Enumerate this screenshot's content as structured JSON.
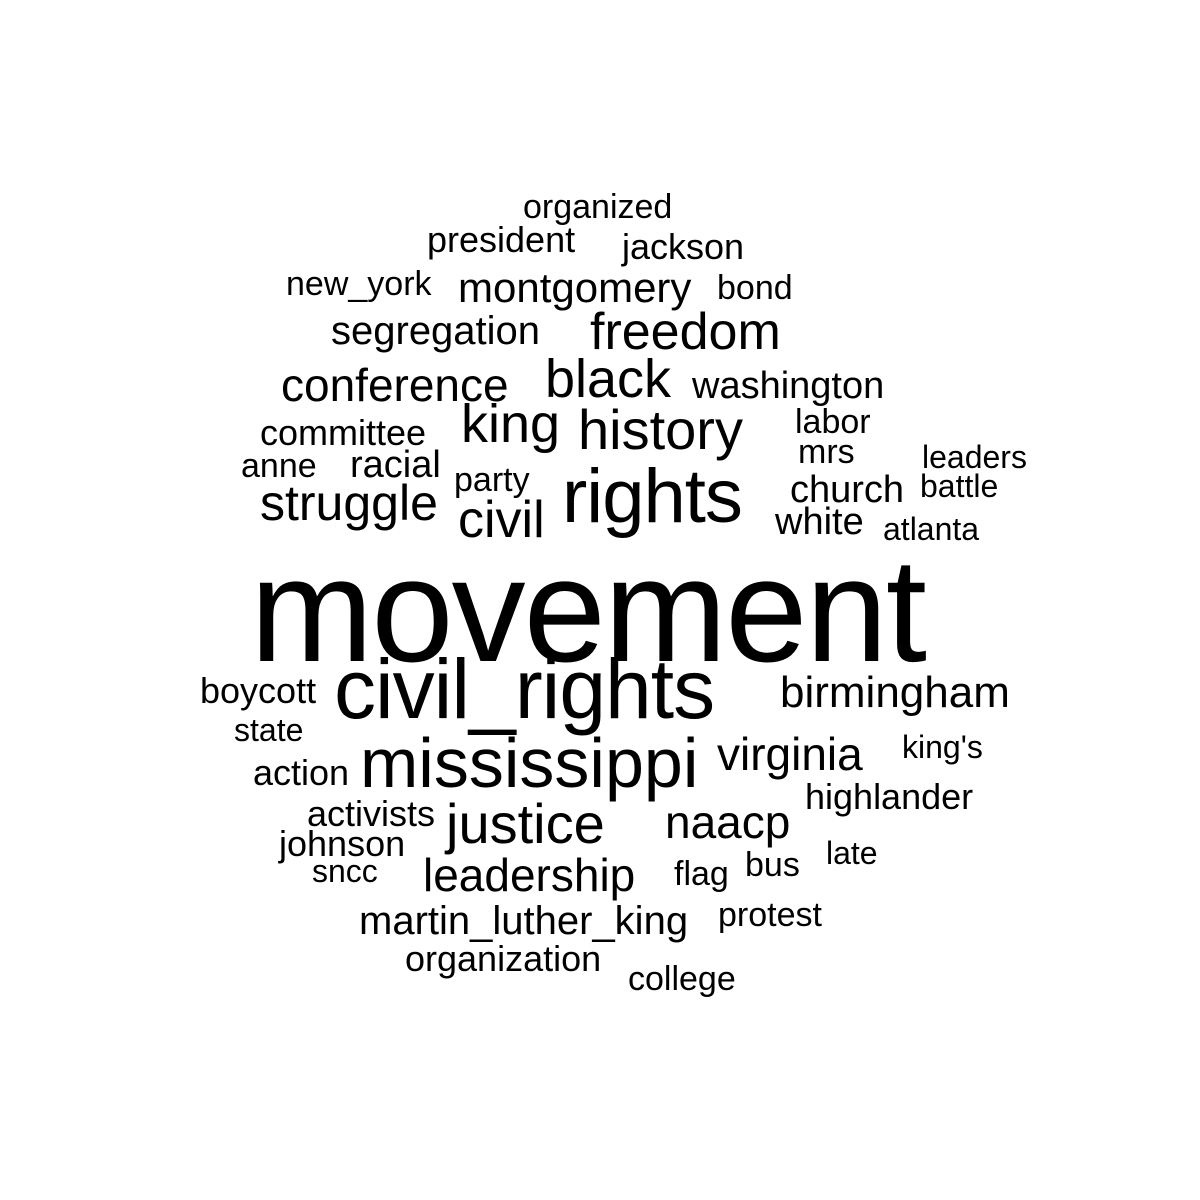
{
  "words": {
    "movement": "movement",
    "civil_rights": "civil_rights",
    "rights": "rights",
    "mississippi": "mississippi",
    "history": "history",
    "justice": "justice",
    "black": "black",
    "king": "king",
    "freedom": "freedom",
    "civil": "civil",
    "struggle": "struggle",
    "virginia": "virginia",
    "naacp": "naacp",
    "conference": "conference",
    "birmingham": "birmingham",
    "leadership": "leadership",
    "montgomery": "montgomery",
    "segregation": "segregation",
    "martin_luther_king": "martin_luther_king",
    "washington": "washington",
    "white": "white",
    "racial": "racial",
    "committee": "committee",
    "church": "church",
    "jackson": "jackson",
    "president": "president",
    "highlander": "highlander",
    "activists": "activists",
    "action": "action",
    "boycott": "boycott",
    "organization": "organization",
    "protest": "protest",
    "johnson": "johnson",
    "bond": "bond",
    "anne": "anne",
    "party": "party",
    "new_york": "new_york",
    "organized": "organized",
    "labor": "labor",
    "mrs": "mrs",
    "leaders": "leaders",
    "battle": "battle",
    "atlanta": "atlanta",
    "kings": "king's",
    "late": "late",
    "bus": "bus",
    "flag": "flag",
    "state": "state",
    "sncc": "sncc",
    "college": "college"
  }
}
